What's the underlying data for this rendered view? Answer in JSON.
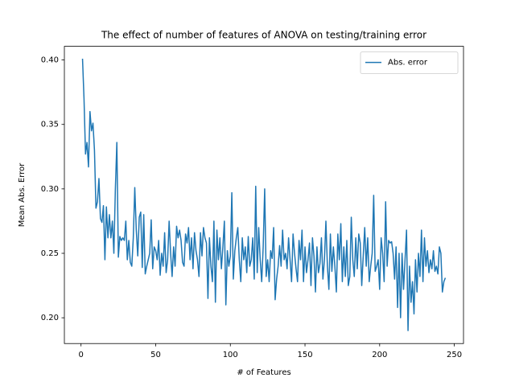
{
  "chart_data": {
    "type": "line",
    "title": "The effect of number of features of ANOVA on testing/training error",
    "x_label": "# of Features",
    "y_label": "Mean Abs. Error",
    "legend": "upper right",
    "grid": false,
    "xlim": [
      -11.15,
      256.15
    ],
    "ylim": [
      0.18,
      0.4106
    ],
    "xticks": [
      0,
      50,
      100,
      150,
      200,
      250
    ],
    "yticks": [
      {
        "value": 0.2,
        "label": "0.20"
      },
      0.25,
      {
        "value": 0.3,
        "label": "0.30"
      },
      0.35,
      {
        "value": 0.4,
        "label": "0.40"
      }
    ],
    "x": [
      1,
      2,
      3,
      4,
      5,
      6,
      7,
      8,
      9,
      10,
      11,
      12,
      13,
      14,
      15,
      16,
      17,
      18,
      19,
      20,
      21,
      22,
      23,
      24,
      25,
      26,
      27,
      28,
      29,
      30,
      31,
      32,
      33,
      34,
      35,
      36,
      37,
      38,
      39,
      40,
      41,
      42,
      43,
      44,
      45,
      46,
      47,
      48,
      49,
      50,
      51,
      52,
      53,
      54,
      55,
      56,
      57,
      58,
      59,
      60,
      61,
      62,
      63,
      64,
      65,
      66,
      67,
      68,
      69,
      70,
      71,
      72,
      73,
      74,
      75,
      76,
      77,
      78,
      79,
      80,
      81,
      82,
      83,
      84,
      85,
      86,
      87,
      88,
      89,
      90,
      91,
      92,
      93,
      94,
      95,
      96,
      97,
      98,
      99,
      100,
      101,
      102,
      103,
      104,
      105,
      106,
      107,
      108,
      109,
      110,
      111,
      112,
      113,
      114,
      115,
      116,
      117,
      118,
      119,
      120,
      121,
      122,
      123,
      124,
      125,
      126,
      127,
      128,
      129,
      130,
      131,
      132,
      133,
      134,
      135,
      136,
      137,
      138,
      139,
      140,
      141,
      142,
      143,
      144,
      145,
      146,
      147,
      148,
      149,
      150,
      151,
      152,
      153,
      154,
      155,
      156,
      157,
      158,
      159,
      160,
      161,
      162,
      163,
      164,
      165,
      166,
      167,
      168,
      169,
      170,
      171,
      172,
      173,
      174,
      175,
      176,
      177,
      178,
      179,
      180,
      181,
      182,
      183,
      184,
      185,
      186,
      187,
      188,
      189,
      190,
      191,
      192,
      193,
      194,
      195,
      196,
      197,
      198,
      199,
      200,
      201,
      202,
      203,
      204,
      205,
      206,
      207,
      208,
      209,
      210,
      211,
      212,
      213,
      214,
      215,
      216,
      217,
      218,
      219,
      220,
      221,
      222,
      223,
      224,
      225,
      226,
      227,
      228,
      229,
      230,
      231,
      232,
      233,
      234,
      235,
      236,
      237,
      238,
      239,
      240,
      241,
      242,
      243,
      244
    ],
    "series": [
      {
        "name": "Abs. error",
        "color": "#1f77b4",
        "values": [
          0.401,
          0.37,
          0.327,
          0.336,
          0.317,
          0.36,
          0.345,
          0.351,
          0.33,
          0.285,
          0.29,
          0.308,
          0.277,
          0.274,
          0.287,
          0.245,
          0.286,
          0.262,
          0.28,
          0.262,
          0.275,
          0.25,
          0.3,
          0.336,
          0.247,
          0.263,
          0.26,
          0.262,
          0.26,
          0.275,
          0.245,
          0.26,
          0.243,
          0.24,
          0.262,
          0.301,
          0.268,
          0.248,
          0.278,
          0.282,
          0.239,
          0.28,
          0.234,
          0.24,
          0.245,
          0.25,
          0.276,
          0.238,
          0.255,
          0.252,
          0.245,
          0.26,
          0.233,
          0.25,
          0.24,
          0.266,
          0.235,
          0.245,
          0.275,
          0.25,
          0.232,
          0.255,
          0.24,
          0.271,
          0.262,
          0.268,
          0.26,
          0.243,
          0.24,
          0.265,
          0.258,
          0.27,
          0.245,
          0.262,
          0.238,
          0.266,
          0.252,
          0.245,
          0.232,
          0.266,
          0.248,
          0.27,
          0.262,
          0.258,
          0.215,
          0.262,
          0.24,
          0.228,
          0.275,
          0.212,
          0.268,
          0.245,
          0.262,
          0.238,
          0.255,
          0.275,
          0.21,
          0.252,
          0.24,
          0.248,
          0.297,
          0.23,
          0.252,
          0.262,
          0.27,
          0.245,
          0.228,
          0.262,
          0.245,
          0.255,
          0.235,
          0.263,
          0.24,
          0.245,
          0.262,
          0.23,
          0.302,
          0.235,
          0.27,
          0.245,
          0.228,
          0.255,
          0.3,
          0.232,
          0.245,
          0.228,
          0.252,
          0.246,
          0.27,
          0.214,
          0.23,
          0.24,
          0.256,
          0.24,
          0.268,
          0.245,
          0.25,
          0.238,
          0.262,
          0.245,
          0.228,
          0.265,
          0.25,
          0.238,
          0.228,
          0.26,
          0.245,
          0.268,
          0.228,
          0.255,
          0.235,
          0.245,
          0.258,
          0.225,
          0.262,
          0.248,
          0.22,
          0.255,
          0.235,
          0.242,
          0.262,
          0.23,
          0.245,
          0.275,
          0.24,
          0.222,
          0.265,
          0.236,
          0.255,
          0.24,
          0.22,
          0.265,
          0.245,
          0.273,
          0.228,
          0.255,
          0.232,
          0.26,
          0.225,
          0.232,
          0.278,
          0.245,
          0.232,
          0.262,
          0.238,
          0.265,
          0.258,
          0.225,
          0.248,
          0.27,
          0.24,
          0.262,
          0.228,
          0.24,
          0.25,
          0.295,
          0.236,
          0.24,
          0.245,
          0.222,
          0.262,
          0.25,
          0.228,
          0.29,
          0.24,
          0.26,
          0.258,
          0.259,
          0.25,
          0.23,
          0.255,
          0.208,
          0.25,
          0.2,
          0.25,
          0.222,
          0.245,
          0.268,
          0.19,
          0.24,
          0.212,
          0.228,
          0.203,
          0.245,
          0.22,
          0.25,
          0.232,
          0.268,
          0.228,
          0.262,
          0.24,
          0.252,
          0.235,
          0.245,
          0.238,
          0.252,
          0.236,
          0.24,
          0.234,
          0.255,
          0.25,
          0.22,
          0.228,
          0.231
        ]
      }
    ]
  }
}
